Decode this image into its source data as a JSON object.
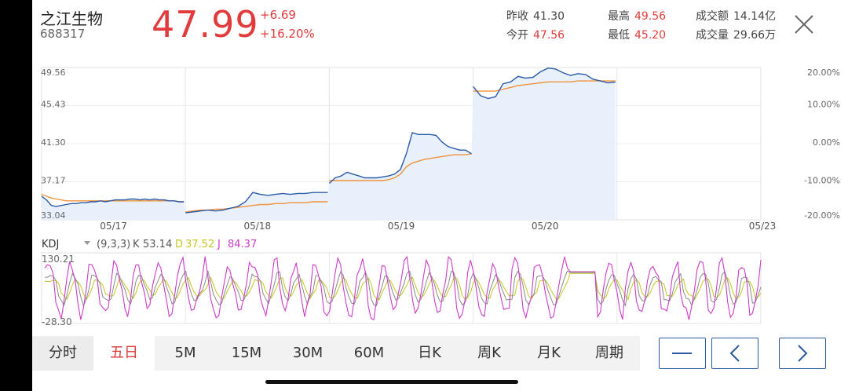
{
  "stock": {
    "name": "之江生物",
    "code": "688317",
    "price": "47.99",
    "change": "+6.69",
    "change_pct": "+16.20%"
  },
  "stats": {
    "prev_close_label": "昨收",
    "prev_close": "41.30",
    "open_label": "今开",
    "open": "47.56",
    "high_label": "最高",
    "high": "49.56",
    "low_label": "最低",
    "low": "45.20",
    "amount_label": "成交额",
    "amount": "14.14亿",
    "volume_label": "成交量",
    "volume": "29.66万"
  },
  "colors": {
    "up": "#e23b3b",
    "price_line": "#2b5ba8",
    "avg_line": "#f0923a",
    "fill": "#e8f1fb",
    "k": "#8a8a8a",
    "d": "#c5c520",
    "j": "#cc3cc8"
  },
  "chart_data": [
    {
      "type": "line",
      "title": "",
      "x_labels": [
        "05/17",
        "05/18",
        "05/19",
        "05/20",
        "05/23"
      ],
      "y_left_ticks": [
        "49.56",
        "45.43",
        "41.30",
        "37.17",
        "33.04"
      ],
      "y_right_ticks": [
        "20.00%",
        "10.00%",
        "0.00%",
        "-10.00%",
        "-20.00%"
      ],
      "ylim": [
        33.04,
        49.56
      ],
      "series": [
        {
          "values": [
            35.6,
            35.2,
            34.6,
            34.5,
            34.6,
            34.7,
            34.8,
            34.8,
            34.9,
            34.9,
            35.0,
            35.0,
            35.1,
            35.0,
            35.1,
            35.2,
            35.2,
            35.2,
            35.3,
            35.3,
            35.2,
            35.3,
            35.2,
            35.3,
            35.2,
            35.2,
            35.1,
            35.1,
            35.0,
            35.0,
            33.8,
            33.9,
            34.0,
            34.1,
            34.0,
            34.1,
            34.3,
            34.5,
            35.0,
            36.0,
            35.8,
            35.7,
            35.8,
            35.9,
            35.8,
            35.9,
            35.9,
            36.0,
            36.0,
            36.0,
            37.0,
            37.6,
            37.8,
            38.2,
            38.0,
            37.8,
            37.6,
            37.6,
            37.6,
            37.7,
            37.8,
            38.0,
            38.5,
            40.2,
            42.5,
            42.3,
            42.3,
            42.3,
            42.2,
            41.5,
            41.0,
            40.8,
            40.6,
            40.6,
            40.2,
            47.5,
            46.5,
            46.2,
            46.4,
            47.8,
            48.0,
            48.6,
            48.4,
            48.5,
            49.1,
            49.5,
            49.4,
            49.0,
            48.7,
            48.9,
            48.8,
            48.3,
            48.1,
            47.9,
            47.99
          ]
        },
        {
          "values": [
            35.8,
            35.6,
            35.4,
            35.3,
            35.2,
            35.1,
            35.1,
            35.1,
            35.1,
            35.1,
            35.1,
            35.1,
            35.1,
            35.1,
            35.1,
            35.1,
            35.1,
            35.1,
            35.1,
            35.1,
            35.1,
            35.1,
            35.1,
            35.1,
            35.1,
            35.1,
            35.1,
            35.1,
            35.0,
            35.0,
            33.9,
            34.0,
            34.1,
            34.1,
            34.2,
            34.2,
            34.3,
            34.4,
            34.5,
            34.6,
            34.7,
            34.7,
            34.8,
            34.8,
            34.9,
            34.9,
            34.9,
            35.0,
            35.0,
            35.0,
            37.3,
            37.3,
            37.3,
            37.3,
            37.3,
            37.3,
            37.3,
            37.3,
            37.3,
            37.3,
            37.4,
            37.6,
            38.0,
            38.8,
            39.2,
            39.4,
            39.6,
            39.7,
            39.8,
            39.9,
            40.0,
            40.1,
            40.1,
            40.1,
            40.2,
            47.0,
            47.0,
            47.0,
            47.0,
            47.2,
            47.4,
            47.6,
            47.7,
            47.8,
            47.9,
            48.0,
            48.0,
            48.0,
            48.0,
            48.1,
            48.1,
            48.1,
            48.1,
            48.1,
            48.1
          ]
        }
      ]
    },
    {
      "type": "line",
      "title": "",
      "indicator": "KDJ",
      "params": "(9,3,3)",
      "k_label": "K",
      "k_value": "53.14",
      "d_label": "D",
      "d_value": "37.52",
      "j_label": "J",
      "j_value": "84.37",
      "y_ticks": [
        "130.21",
        "-28.30"
      ],
      "ylim": [
        -28.3,
        130.21
      ]
    }
  ],
  "tabs": [
    {
      "label": "分时",
      "active": false
    },
    {
      "label": "五日",
      "active": true
    },
    {
      "label": "5M",
      "active": false
    },
    {
      "label": "15M",
      "active": false
    },
    {
      "label": "30M",
      "active": false
    },
    {
      "label": "60M",
      "active": false
    },
    {
      "label": "日K",
      "active": false
    },
    {
      "label": "周K",
      "active": false
    },
    {
      "label": "月K",
      "active": false
    },
    {
      "label": "周期",
      "active": false
    }
  ],
  "icons": {
    "close": "close-icon",
    "zoom_out": "minus-icon",
    "prev": "chevron-left-icon",
    "next": "chevron-right-icon",
    "dropdown": "chevron-down-icon"
  }
}
